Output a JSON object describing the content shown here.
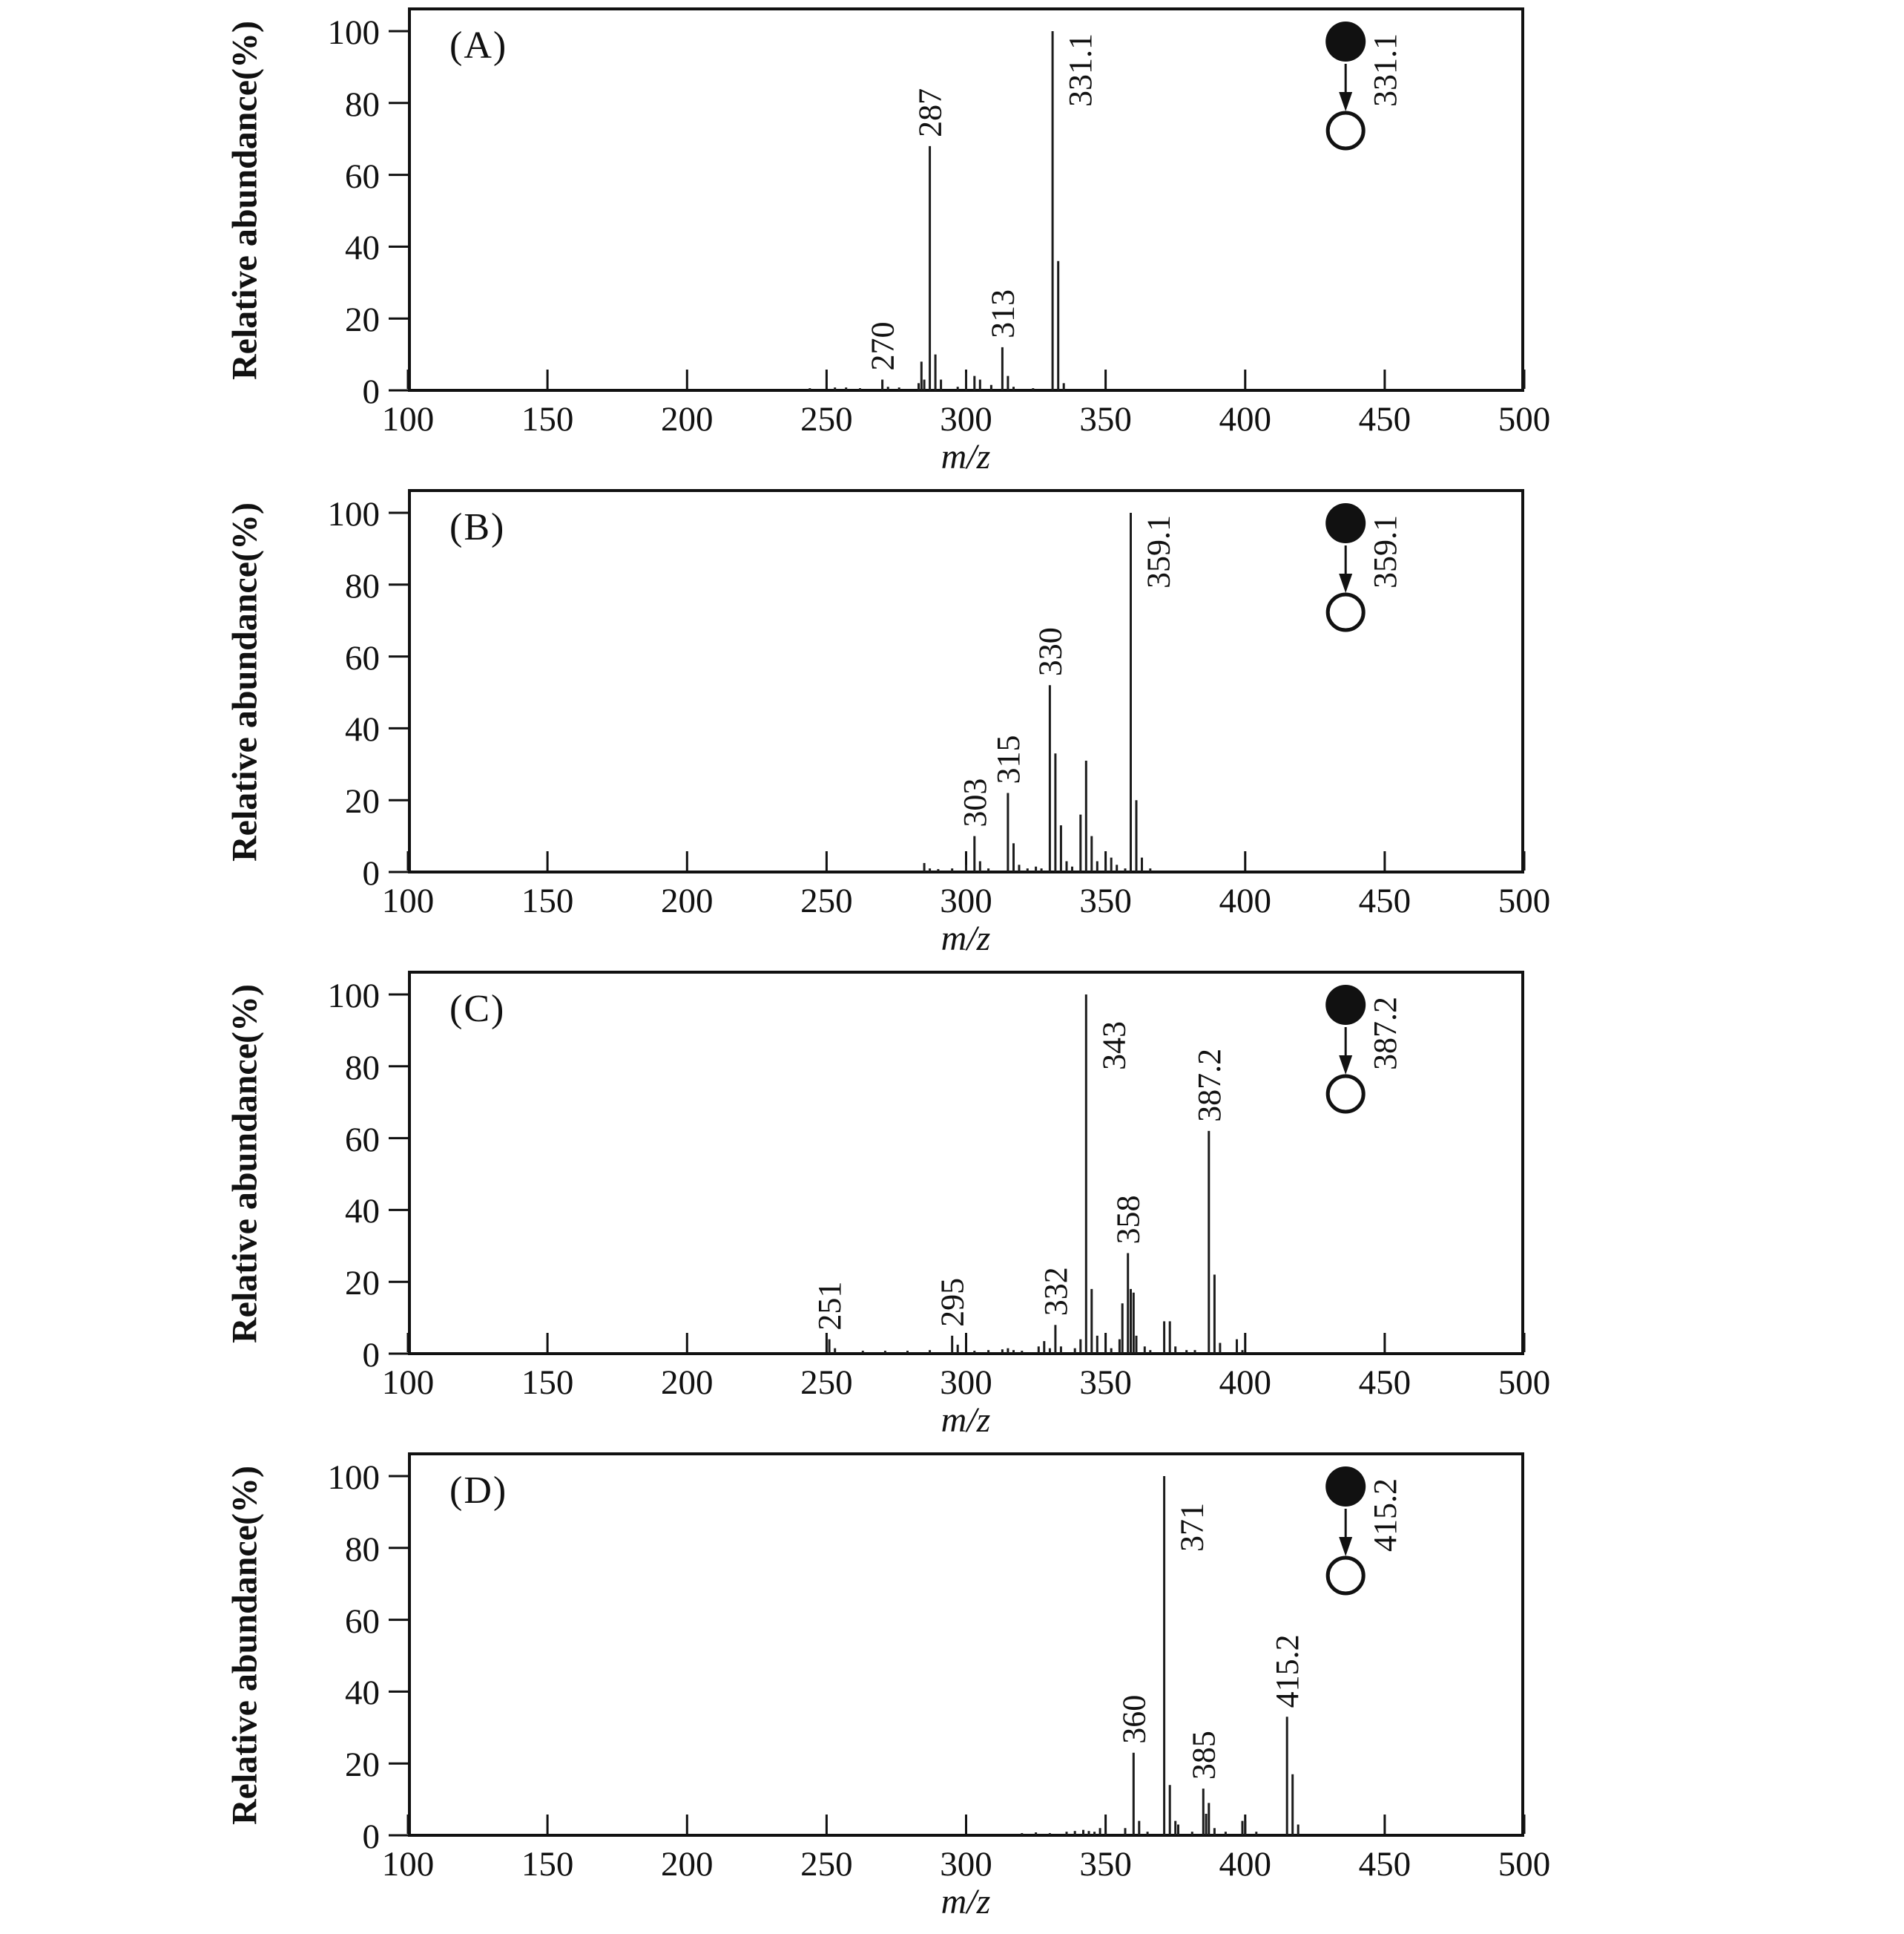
{
  "colors": {
    "ink": "#111111",
    "peak": "#1c1c1c",
    "background": "#ffffff"
  },
  "axis": {
    "y_title": "Relative abundance(%)",
    "x_title": "m/z",
    "x_ticks": [
      100,
      150,
      200,
      250,
      300,
      350,
      400,
      450,
      500
    ],
    "y_ticks": [
      0,
      20,
      40,
      60,
      80,
      100
    ]
  },
  "chart_data": [
    {
      "panel": "A",
      "type": "bar",
      "title": "(A)",
      "xlabel": "m/z",
      "ylabel": "Relative abundance(%)",
      "xlim": [
        100,
        500
      ],
      "ylim": [
        0,
        100
      ],
      "x_ticks": [
        100,
        150,
        200,
        250,
        300,
        350,
        400,
        450,
        500
      ],
      "y_ticks": [
        0,
        20,
        40,
        60,
        80,
        100
      ],
      "peaks": [
        [
          244,
          0.6
        ],
        [
          253,
          0.8
        ],
        [
          257,
          0.8
        ],
        [
          262,
          0.6
        ],
        [
          270,
          3
        ],
        [
          272,
          1
        ],
        [
          276,
          0.8
        ],
        [
          283,
          2
        ],
        [
          284,
          8
        ],
        [
          285,
          3
        ],
        [
          287,
          68
        ],
        [
          289,
          10
        ],
        [
          291,
          3
        ],
        [
          297,
          1
        ],
        [
          300,
          5
        ],
        [
          303,
          4
        ],
        [
          305,
          3
        ],
        [
          309,
          1.5
        ],
        [
          313,
          12
        ],
        [
          315,
          4
        ],
        [
          317,
          1
        ],
        [
          324,
          0.6
        ],
        [
          331,
          100
        ],
        [
          333,
          36
        ],
        [
          335,
          2
        ]
      ],
      "peak_labels": [
        {
          "text": "270",
          "mz": 270,
          "pct": 3,
          "placement": "above"
        },
        {
          "text": "287",
          "mz": 287,
          "pct": 68,
          "placement": "above"
        },
        {
          "text": "313",
          "mz": 313,
          "pct": 12,
          "placement": "above"
        },
        {
          "text": "331.1",
          "mz": 331,
          "pct": 100,
          "placement": "right"
        }
      ],
      "inset": {
        "label": "331.1",
        "precursor_x": 436
      }
    },
    {
      "panel": "B",
      "type": "bar",
      "title": "(B)",
      "xlabel": "m/z",
      "ylabel": "Relative abundance(%)",
      "xlim": [
        100,
        500
      ],
      "ylim": [
        0,
        100
      ],
      "x_ticks": [
        100,
        150,
        200,
        250,
        300,
        350,
        400,
        450,
        500
      ],
      "y_ticks": [
        0,
        20,
        40,
        60,
        80,
        100
      ],
      "peaks": [
        [
          285,
          2.5
        ],
        [
          287,
          1
        ],
        [
          290,
          0.8
        ],
        [
          295,
          1
        ],
        [
          300,
          2
        ],
        [
          303,
          10
        ],
        [
          305,
          3
        ],
        [
          308,
          1
        ],
        [
          315,
          22
        ],
        [
          317,
          8
        ],
        [
          319,
          2
        ],
        [
          322,
          1
        ],
        [
          325,
          1.5
        ],
        [
          327,
          1
        ],
        [
          330,
          52
        ],
        [
          332,
          33
        ],
        [
          334,
          13
        ],
        [
          336,
          3
        ],
        [
          338,
          1.5
        ],
        [
          341,
          16
        ],
        [
          343,
          31
        ],
        [
          345,
          10
        ],
        [
          347,
          3
        ],
        [
          350,
          2
        ],
        [
          352,
          4
        ],
        [
          354,
          2
        ],
        [
          357,
          1
        ],
        [
          359,
          100
        ],
        [
          361,
          20
        ],
        [
          363,
          4
        ],
        [
          366,
          1
        ]
      ],
      "peak_labels": [
        {
          "text": "303",
          "mz": 303,
          "pct": 10,
          "placement": "above"
        },
        {
          "text": "315",
          "mz": 315,
          "pct": 22,
          "placement": "above"
        },
        {
          "text": "330",
          "mz": 330,
          "pct": 52,
          "placement": "above"
        },
        {
          "text": "359.1",
          "mz": 359,
          "pct": 100,
          "placement": "right"
        }
      ],
      "inset": {
        "label": "359.1",
        "precursor_x": 436
      }
    },
    {
      "panel": "C",
      "type": "bar",
      "title": "(C)",
      "xlabel": "m/z",
      "ylabel": "Relative abundance(%)",
      "xlim": [
        100,
        500
      ],
      "ylim": [
        0,
        100
      ],
      "x_ticks": [
        100,
        150,
        200,
        250,
        300,
        350,
        400,
        450,
        500
      ],
      "y_ticks": [
        0,
        20,
        40,
        60,
        80,
        100
      ],
      "peaks": [
        [
          251,
          4
        ],
        [
          253,
          1.5
        ],
        [
          263,
          0.8
        ],
        [
          271,
          0.8
        ],
        [
          279,
          0.8
        ],
        [
          287,
          1
        ],
        [
          295,
          5
        ],
        [
          297,
          2.5
        ],
        [
          303,
          0.8
        ],
        [
          308,
          1
        ],
        [
          313,
          1.2
        ],
        [
          315,
          1.5
        ],
        [
          317,
          1
        ],
        [
          320,
          0.8
        ],
        [
          326,
          2
        ],
        [
          328,
          3.5
        ],
        [
          330,
          1.5
        ],
        [
          332,
          8
        ],
        [
          334,
          2
        ],
        [
          339,
          1.5
        ],
        [
          341,
          4
        ],
        [
          343,
          100
        ],
        [
          345,
          18
        ],
        [
          347,
          5
        ],
        [
          350,
          1
        ],
        [
          352,
          1.5
        ],
        [
          355,
          4
        ],
        [
          356,
          14
        ],
        [
          358,
          28
        ],
        [
          359,
          18
        ],
        [
          360,
          17
        ],
        [
          361,
          5
        ],
        [
          364,
          2
        ],
        [
          366,
          1
        ],
        [
          371,
          9
        ],
        [
          373,
          9
        ],
        [
          375,
          2
        ],
        [
          379,
          1
        ],
        [
          382,
          1
        ],
        [
          387,
          62
        ],
        [
          389,
          22
        ],
        [
          391,
          3
        ],
        [
          397,
          4
        ],
        [
          399,
          1
        ]
      ],
      "peak_labels": [
        {
          "text": "251",
          "mz": 251,
          "pct": 4,
          "placement": "above"
        },
        {
          "text": "295",
          "mz": 295,
          "pct": 5,
          "placement": "above"
        },
        {
          "text": "332",
          "mz": 332,
          "pct": 8,
          "placement": "above"
        },
        {
          "text": "343",
          "mz": 343,
          "pct": 100,
          "placement": "right"
        },
        {
          "text": "358",
          "mz": 358,
          "pct": 28,
          "placement": "above"
        },
        {
          "text": "387.2",
          "mz": 387,
          "pct": 62,
          "placement": "above"
        }
      ],
      "inset": {
        "label": "387.2",
        "precursor_x": 436
      }
    },
    {
      "panel": "D",
      "type": "bar",
      "title": "(D)",
      "xlabel": "m/z",
      "ylabel": "Relative abundance(%)",
      "xlim": [
        100,
        500
      ],
      "ylim": [
        0,
        100
      ],
      "x_ticks": [
        100,
        150,
        200,
        250,
        300,
        350,
        400,
        450,
        500
      ],
      "y_ticks": [
        0,
        20,
        40,
        60,
        80,
        100
      ],
      "peaks": [
        [
          320,
          0.6
        ],
        [
          325,
          0.8
        ],
        [
          330,
          0.6
        ],
        [
          336,
          1
        ],
        [
          339,
          1.2
        ],
        [
          342,
          1.5
        ],
        [
          344,
          1.2
        ],
        [
          346,
          1
        ],
        [
          348,
          2
        ],
        [
          350,
          1
        ],
        [
          357,
          2
        ],
        [
          360,
          23
        ],
        [
          362,
          4
        ],
        [
          365,
          1
        ],
        [
          371,
          100
        ],
        [
          373,
          14
        ],
        [
          375,
          4
        ],
        [
          376,
          3
        ],
        [
          381,
          1
        ],
        [
          385,
          13
        ],
        [
          386,
          6
        ],
        [
          387,
          9
        ],
        [
          389,
          2
        ],
        [
          393,
          1
        ],
        [
          399,
          4
        ],
        [
          400,
          4
        ],
        [
          404,
          1
        ],
        [
          415,
          33
        ],
        [
          417,
          17
        ],
        [
          419,
          3
        ]
      ],
      "peak_labels": [
        {
          "text": "360",
          "mz": 360,
          "pct": 23,
          "placement": "above"
        },
        {
          "text": "371",
          "mz": 371,
          "pct": 100,
          "placement": "right"
        },
        {
          "text": "385",
          "mz": 385,
          "pct": 13,
          "placement": "above"
        },
        {
          "text": "415.2",
          "mz": 415,
          "pct": 33,
          "placement": "above"
        }
      ],
      "inset": {
        "label": "415.2",
        "precursor_x": 436
      }
    }
  ]
}
